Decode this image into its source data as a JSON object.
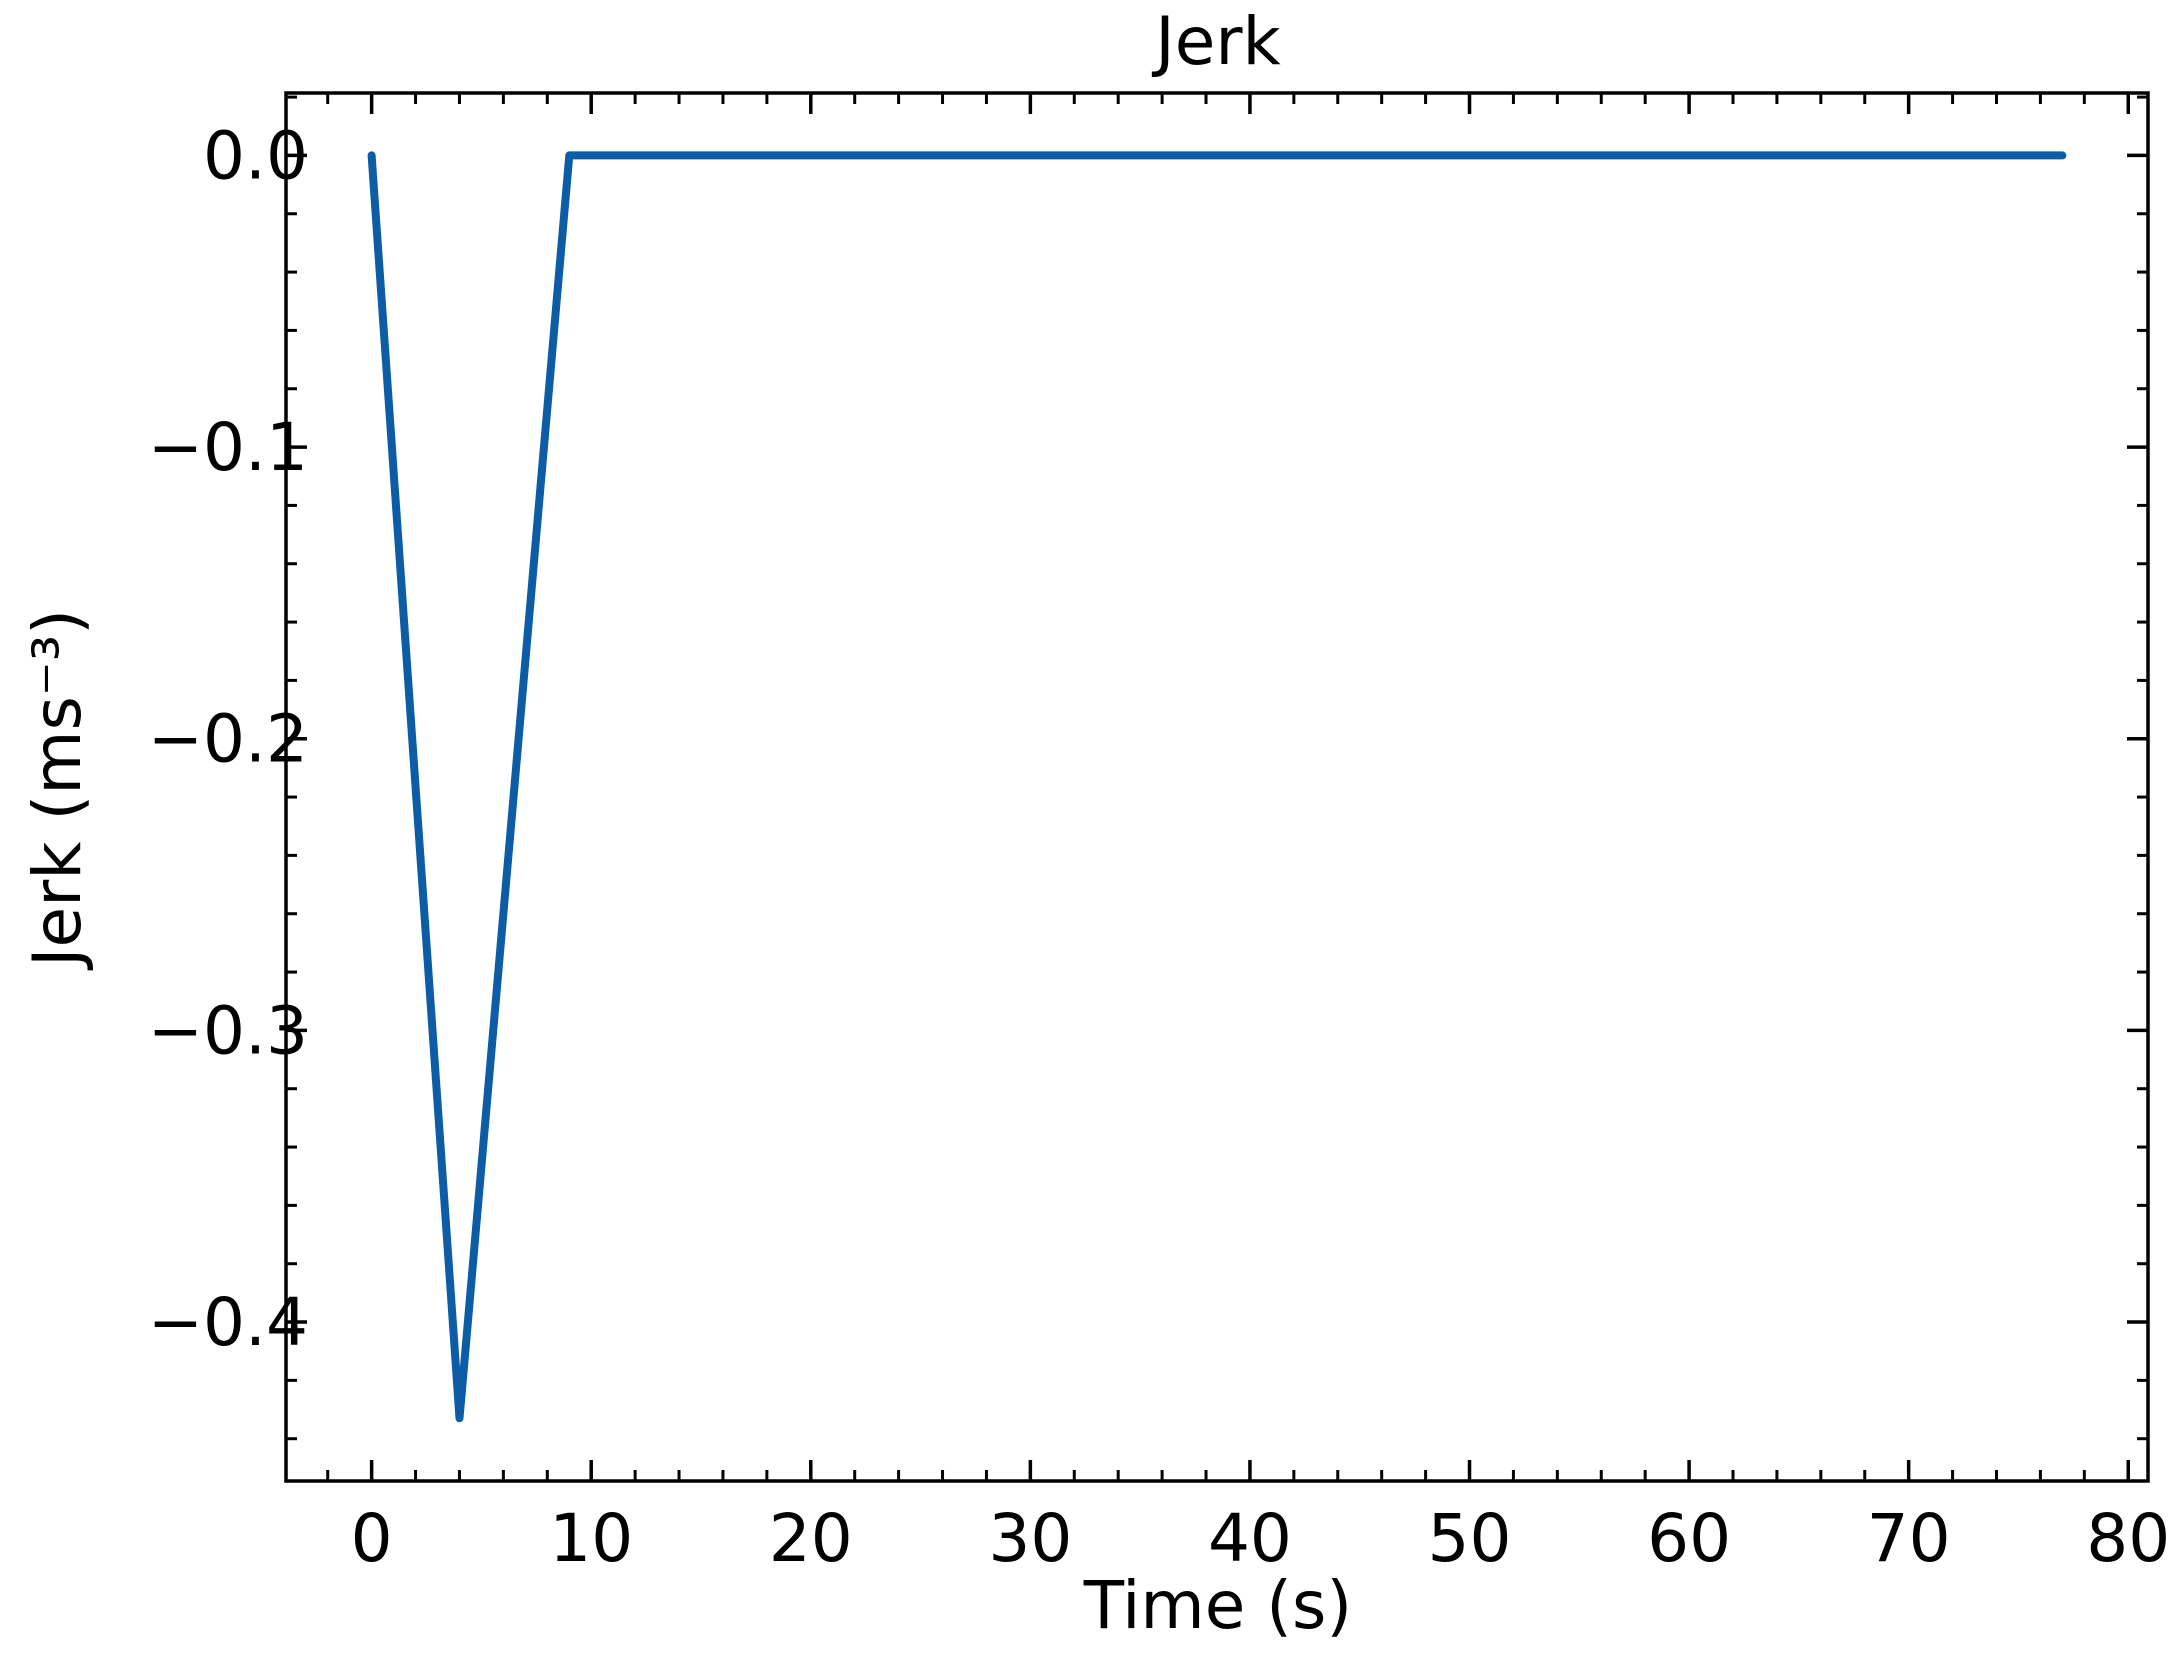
{
  "chart_data": {
    "type": "line",
    "title": "Jerk",
    "xlabel": "Time (s)",
    "ylabel": "Jerk (ms⁻³)",
    "xlim": [
      -3.9,
      80.9
    ],
    "ylim": [
      -0.4545,
      0.0214
    ],
    "x_ticks": [
      0,
      10,
      20,
      30,
      40,
      50,
      60,
      70,
      80
    ],
    "x_tick_labels": [
      "0",
      "10",
      "20",
      "30",
      "40",
      "50",
      "60",
      "70",
      "80"
    ],
    "x_minor_step": 2,
    "y_ticks": [
      0.0,
      -0.1,
      -0.2,
      -0.3,
      -0.4
    ],
    "y_tick_labels": [
      "0.0",
      "−0.1",
      "−0.2",
      "−0.3",
      "−0.4"
    ],
    "y_minor_step": 0.02,
    "grid": false,
    "series": [
      {
        "color": "#0c5da5",
        "x": [
          0,
          4,
          9,
          77
        ],
        "y": [
          0.0,
          -0.433,
          0.0,
          0.0
        ]
      }
    ]
  }
}
